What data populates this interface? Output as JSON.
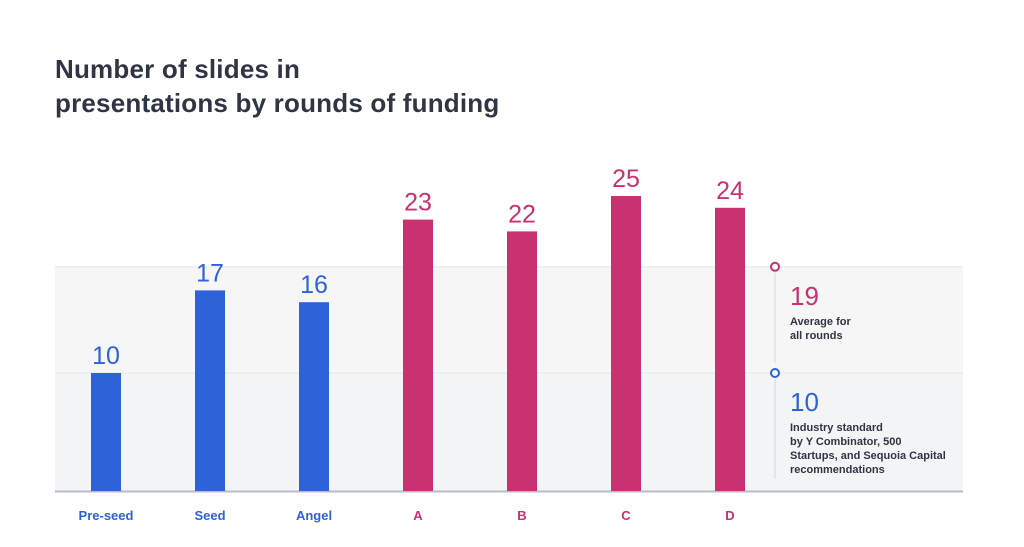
{
  "chart_data": {
    "type": "bar",
    "title_lines": [
      "Number of slides in",
      "presentations by rounds of funding"
    ],
    "categories": [
      "Pre-seed",
      "Seed",
      "Angel",
      "A",
      "B",
      "C",
      "D"
    ],
    "values": [
      10,
      17,
      16,
      23,
      22,
      25,
      24
    ],
    "bar_colors": [
      "#2e62d9",
      "#2e62d9",
      "#2e62d9",
      "#c7326f",
      "#c7326f",
      "#c7326f",
      "#c7326f"
    ],
    "ylim": [
      0,
      25
    ],
    "grid": false,
    "reference_lines": [
      {
        "value": 19,
        "label_value": "19",
        "color": "#c7326f",
        "band_color": "#f6f6f7",
        "description": [
          "Average for",
          "all rounds"
        ]
      },
      {
        "value": 10,
        "label_value": "10",
        "color": "#2e62d9",
        "band_color": "#f3f4f6",
        "description": [
          "Industry standard",
          "by Y Combinator, 500",
          "Startups, and Sequoia Capital",
          "recommendations"
        ]
      }
    ],
    "axis_color": "#b8bcc6"
  }
}
